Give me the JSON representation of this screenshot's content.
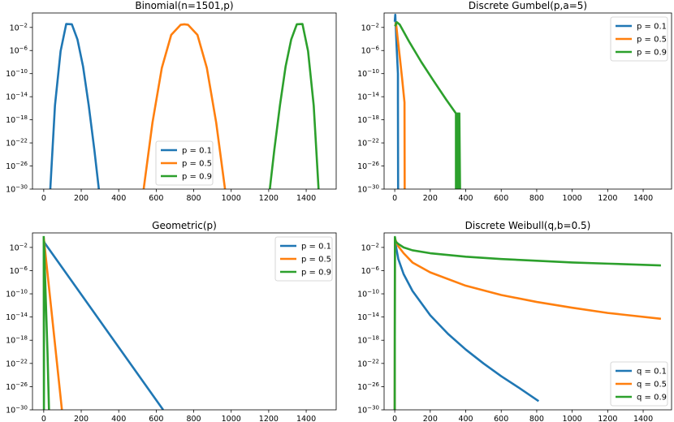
{
  "chart_data": [
    {
      "type": "line",
      "title": "Binomial(n=1501,p)",
      "xlim": [
        -60,
        1560
      ],
      "ylim_log10": [
        -30,
        0.5
      ],
      "xticks": [
        0,
        200,
        400,
        600,
        800,
        1000,
        1200,
        1400
      ],
      "yticks_exp": [
        -2,
        -6,
        -10,
        -14,
        -18,
        -22,
        -26,
        -30
      ],
      "legend_loc": "lower-center",
      "series": [
        {
          "name": "p = 0.1",
          "color": "#1f77b4",
          "x": [
            35,
            60,
            90,
            120,
            150,
            180,
            210,
            240,
            270,
            300
          ],
          "y_log10": [
            -30,
            -15.5,
            -6.1,
            -1.4,
            -1.46,
            -4.1,
            -8.8,
            -15.5,
            -23.2,
            -31.7
          ]
        },
        {
          "name": "p = 0.5",
          "color": "#ff7f0e",
          "x": [
            533,
            580,
            630,
            680,
            730,
            750,
            770,
            820,
            870,
            920,
            967
          ],
          "y_log10": [
            -30,
            -18.5,
            -9.0,
            -3.3,
            -1.55,
            -1.46,
            -1.55,
            -3.3,
            -9.0,
            -18.5,
            -30
          ]
        },
        {
          "name": "p = 0.9",
          "color": "#2ca02c",
          "x": [
            1200,
            1230,
            1260,
            1290,
            1320,
            1350,
            1380,
            1410,
            1440,
            1466
          ],
          "y_log10": [
            -31.7,
            -23.2,
            -15.5,
            -8.8,
            -4.1,
            -1.46,
            -1.4,
            -6.1,
            -15.5,
            -30
          ]
        }
      ]
    },
    {
      "type": "line",
      "title": "Discrete Gumbel(p,a=5)",
      "xlim": [
        -60,
        1560
      ],
      "ylim_log10": [
        -30,
        0.5
      ],
      "xticks": [
        0,
        200,
        400,
        600,
        800,
        1000,
        1200,
        1400
      ],
      "yticks_exp": [
        -2,
        -6,
        -10,
        -14,
        -18,
        -22,
        -26,
        -30
      ],
      "legend_loc": "upper-right",
      "series": [
        {
          "name": "p = 0.1",
          "color": "#1f77b4",
          "x": [
            0,
            3,
            10,
            18,
            18,
            19
          ],
          "y_log10": [
            -1.0,
            0.2,
            -5.0,
            -10.0,
            -14.5,
            -30
          ]
        },
        {
          "name": "p = 0.5",
          "color": "#ff7f0e",
          "x": [
            2,
            7,
            15,
            28,
            42,
            55,
            55,
            56
          ],
          "y_log10": [
            -1.8,
            -1.2,
            -3.5,
            -7.0,
            -11.0,
            -15.0,
            -15.6,
            -30
          ]
        },
        {
          "name": "p = 0.9",
          "color": "#2ca02c",
          "x": [
            2,
            12,
            28,
            80,
            150,
            220,
            290,
            345,
            345,
            348,
            352,
            356,
            360,
            364,
            368
          ],
          "y_log10": [
            -1.8,
            -1.1,
            -1.5,
            -4.4,
            -8.0,
            -11.3,
            -14.5,
            -16.9,
            -30,
            -16.9,
            -30,
            -16.9,
            -30,
            -16.9,
            -30
          ]
        }
      ]
    },
    {
      "type": "line",
      "title": "Geometric(p)",
      "xlim": [
        -60,
        1560
      ],
      "ylim_log10": [
        -30,
        0.5
      ],
      "xticks": [
        0,
        200,
        400,
        600,
        800,
        1000,
        1200,
        1400
      ],
      "yticks_exp": [
        -2,
        -6,
        -10,
        -14,
        -18,
        -22,
        -26,
        -30
      ],
      "legend_loc": "upper-right",
      "series": [
        {
          "name": "p = 0.1",
          "color": "#1f77b4",
          "x": [
            0,
            637
          ],
          "y_log10": [
            -1.0,
            -30
          ]
        },
        {
          "name": "p = 0.5",
          "color": "#ff7f0e",
          "x": [
            0,
            97
          ],
          "y_log10": [
            -0.3,
            -30
          ]
        },
        {
          "name": "p = 0.9",
          "color": "#2ca02c",
          "x": [
            0,
            1,
            2,
            6,
            13,
            20,
            28
          ],
          "y_log10": [
            -0.05,
            -30,
            -1.0,
            -6.0,
            -13.0,
            -20.0,
            -30
          ]
        }
      ]
    },
    {
      "type": "line",
      "title": "Discrete Weibull(q,b=0.5)",
      "xlim": [
        -60,
        1560
      ],
      "ylim_log10": [
        -30,
        0.5
      ],
      "xticks": [
        0,
        200,
        400,
        600,
        800,
        1000,
        1200,
        1400
      ],
      "yticks_exp": [
        -2,
        -6,
        -10,
        -14,
        -18,
        -22,
        -26,
        -30
      ],
      "legend_loc": "lower-right",
      "series": [
        {
          "name": "q = 0.1",
          "color": "#1f77b4",
          "x": [
            0,
            1,
            5,
            20,
            50,
            100,
            200,
            300,
            400,
            500,
            600,
            700,
            811
          ],
          "y_log10": [
            -30,
            -0.4,
            -1.5,
            -4.0,
            -6.6,
            -9.5,
            -13.7,
            -16.9,
            -19.6,
            -22.0,
            -24.2,
            -26.2,
            -28.5
          ]
        },
        {
          "name": "q = 0.5",
          "color": "#ff7f0e",
          "x": [
            0,
            1,
            5,
            20,
            50,
            100,
            200,
            400,
            600,
            800,
            1000,
            1200,
            1500
          ],
          "y_log10": [
            -30,
            -0.4,
            -0.8,
            -1.8,
            -3.0,
            -4.6,
            -6.3,
            -8.6,
            -10.2,
            -11.4,
            -12.4,
            -13.3,
            -14.3
          ]
        },
        {
          "name": "q = 0.9",
          "color": "#2ca02c",
          "x": [
            0,
            1,
            5,
            20,
            50,
            100,
            200,
            400,
            600,
            800,
            1000,
            1200,
            1500
          ],
          "y_log10": [
            -30,
            -0.2,
            -1.0,
            -1.4,
            -2.0,
            -2.5,
            -3.0,
            -3.6,
            -4.0,
            -4.3,
            -4.6,
            -4.8,
            -5.1
          ]
        }
      ]
    }
  ]
}
